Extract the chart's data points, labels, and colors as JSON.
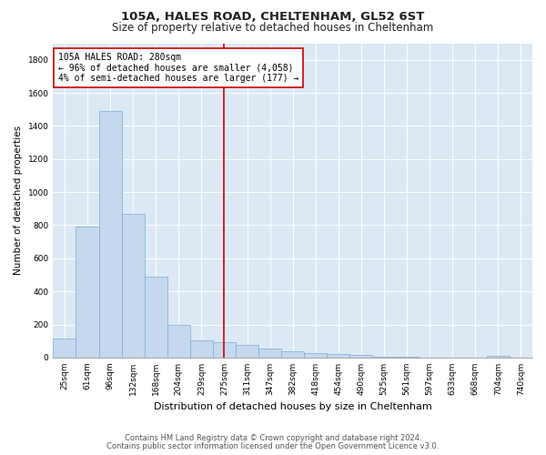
{
  "title": "105A, HALES ROAD, CHELTENHAM, GL52 6ST",
  "subtitle": "Size of property relative to detached houses in Cheltenham",
  "xlabel": "Distribution of detached houses by size in Cheltenham",
  "ylabel": "Number of detached properties",
  "categories": [
    "25sqm",
    "61sqm",
    "96sqm",
    "132sqm",
    "168sqm",
    "204sqm",
    "239sqm",
    "275sqm",
    "311sqm",
    "347sqm",
    "382sqm",
    "418sqm",
    "454sqm",
    "490sqm",
    "525sqm",
    "561sqm",
    "597sqm",
    "633sqm",
    "668sqm",
    "704sqm",
    "740sqm"
  ],
  "values": [
    115,
    790,
    1490,
    870,
    490,
    200,
    105,
    95,
    75,
    55,
    40,
    28,
    22,
    18,
    5,
    3,
    2,
    1,
    1,
    8,
    1
  ],
  "bar_color": "#c5d8ee",
  "bar_edge_color": "#7aadd4",
  "vline_x_index": 7,
  "vline_color": "#cc0000",
  "annotation_text": "105A HALES ROAD: 280sqm\n← 96% of detached houses are smaller (4,058)\n4% of semi-detached houses are larger (177) →",
  "annotation_box_color": "#ffffff",
  "annotation_box_edge": "#cc0000",
  "footer1": "Contains HM Land Registry data © Crown copyright and database right 2024.",
  "footer2": "Contains public sector information licensed under the Open Government Licence v3.0.",
  "ylim": [
    0,
    1900
  ],
  "yticks": [
    0,
    200,
    400,
    600,
    800,
    1000,
    1200,
    1400,
    1600,
    1800
  ],
  "bg_color": "#dce9f5",
  "plot_bg_color": "#dce9f5",
  "fig_bg_color": "#ffffff",
  "title_fontsize": 9.5,
  "subtitle_fontsize": 8.5,
  "footer_fontsize": 6.0,
  "ylabel_fontsize": 7.5,
  "xlabel_fontsize": 8.0,
  "tick_fontsize": 6.5,
  "annot_fontsize": 7.0
}
